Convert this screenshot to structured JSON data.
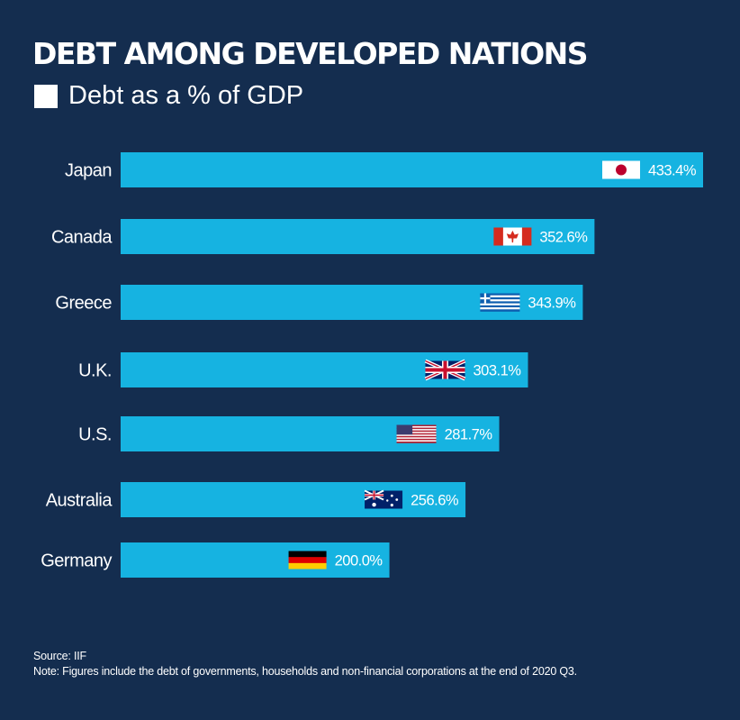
{
  "title": "DEBT AMONG DEVELOPED NATIONS",
  "legend_label": "Debt as a % of GDP",
  "colors": {
    "background": "#142d4f",
    "bar": "#16b3e1",
    "text": "#ffffff"
  },
  "chart_data": {
    "type": "bar",
    "orientation": "horizontal",
    "categories": [
      "Japan",
      "Canada",
      "Greece",
      "U.K.",
      "U.S.",
      "Australia",
      "Germany"
    ],
    "values": [
      433.4,
      352.6,
      343.9,
      303.1,
      281.7,
      256.6,
      200.0
    ],
    "value_labels": [
      "433.4%",
      "352.6%",
      "343.9%",
      "303.1%",
      "281.7%",
      "256.6%",
      "200.0%"
    ],
    "flag_icons": [
      "japan-flag-icon",
      "canada-flag-icon",
      "greece-flag-icon",
      "uk-flag-icon",
      "us-flag-icon",
      "australia-flag-icon",
      "germany-flag-icon"
    ],
    "series": [
      {
        "name": "Debt as a % of GDP",
        "values": [
          433.4,
          352.6,
          343.9,
          303.1,
          281.7,
          256.6,
          200.0
        ]
      }
    ],
    "grid": false,
    "legend_position": "top-left"
  },
  "footer": {
    "source": "Source: IIF",
    "note": "Note: Figures include the debt of governments, households and non-financial corporations at the end of 2020 Q3."
  }
}
